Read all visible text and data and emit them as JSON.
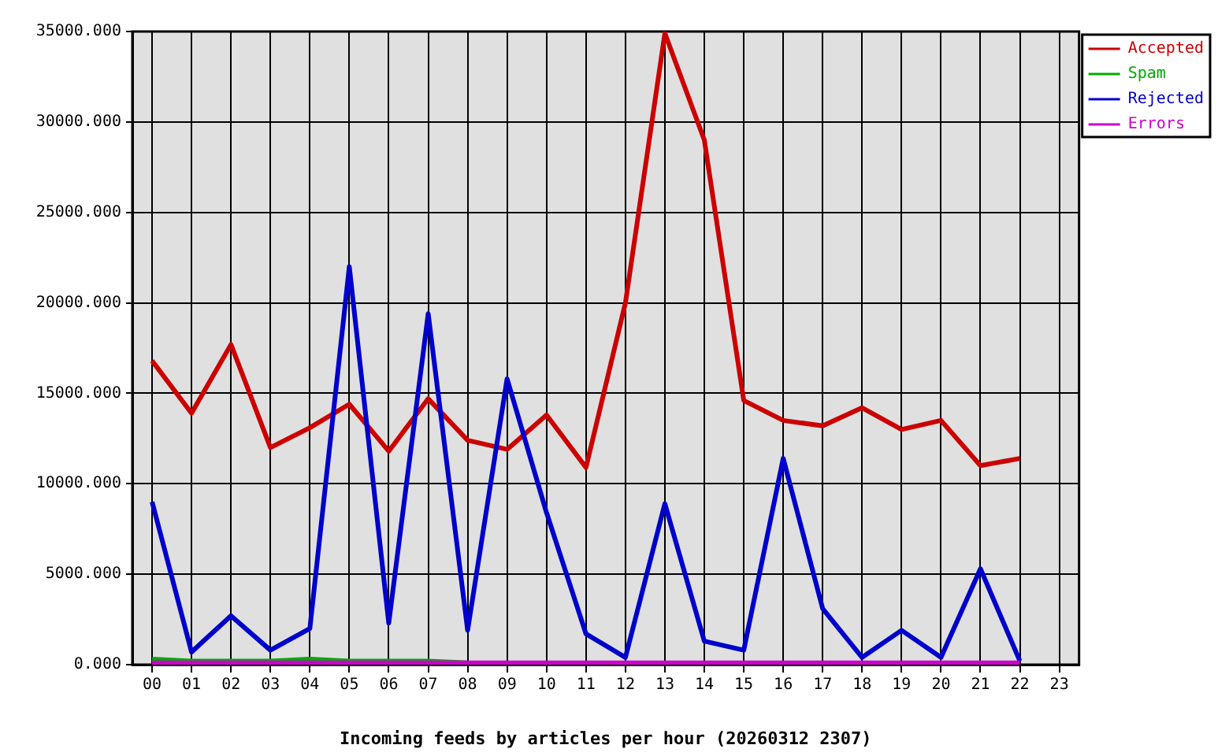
{
  "chart_data": {
    "type": "line",
    "xlabel": "Incoming feeds by articles per hour (20260312 2307)",
    "categories": [
      "00",
      "01",
      "02",
      "03",
      "04",
      "05",
      "06",
      "07",
      "08",
      "09",
      "10",
      "11",
      "12",
      "13",
      "14",
      "15",
      "16",
      "17",
      "18",
      "19",
      "20",
      "21",
      "22",
      "23"
    ],
    "series": [
      {
        "name": "Accepted",
        "color": "#cc0000",
        "values": [
          16800,
          13900,
          17700,
          12000,
          13100,
          14400,
          11800,
          14700,
          12400,
          11900,
          13800,
          10900,
          20000,
          34900,
          29000,
          14600,
          13500,
          13200,
          14200,
          13000,
          13500,
          11000,
          11400,
          null
        ]
      },
      {
        "name": "Spam",
        "color": "#00aa00",
        "values": [
          300,
          200,
          200,
          200,
          300,
          200,
          200,
          200,
          100,
          null,
          null,
          null,
          null,
          null,
          null,
          null,
          null,
          null,
          null,
          null,
          null,
          null,
          null,
          null
        ]
      },
      {
        "name": "Rejected",
        "color": "#0000cc",
        "values": [
          9000,
          700,
          2700,
          800,
          2000,
          22000,
          2300,
          19400,
          1900,
          15800,
          8400,
          1700,
          400,
          8900,
          1300,
          800,
          11400,
          3100,
          400,
          1900,
          400,
          5300,
          200,
          null
        ]
      },
      {
        "name": "Errors",
        "color": "#cc00cc",
        "values": [
          100,
          100,
          100,
          100,
          100,
          100,
          100,
          100,
          100,
          100,
          100,
          100,
          100,
          100,
          100,
          100,
          100,
          100,
          100,
          100,
          100,
          100,
          100,
          null
        ]
      }
    ],
    "ylim": [
      0,
      35000
    ],
    "yticks": [
      {
        "value": 0,
        "label": "0.000"
      },
      {
        "value": 5000,
        "label": "5000.000"
      },
      {
        "value": 10000,
        "label": "10000.000"
      },
      {
        "value": 15000,
        "label": "15000.000"
      },
      {
        "value": 20000,
        "label": "20000.000"
      },
      {
        "value": 25000,
        "label": "25000.000"
      },
      {
        "value": 30000,
        "label": "30000.000"
      },
      {
        "value": 35000,
        "label": "35000.000"
      }
    ],
    "grid": true,
    "legend": "top right"
  }
}
